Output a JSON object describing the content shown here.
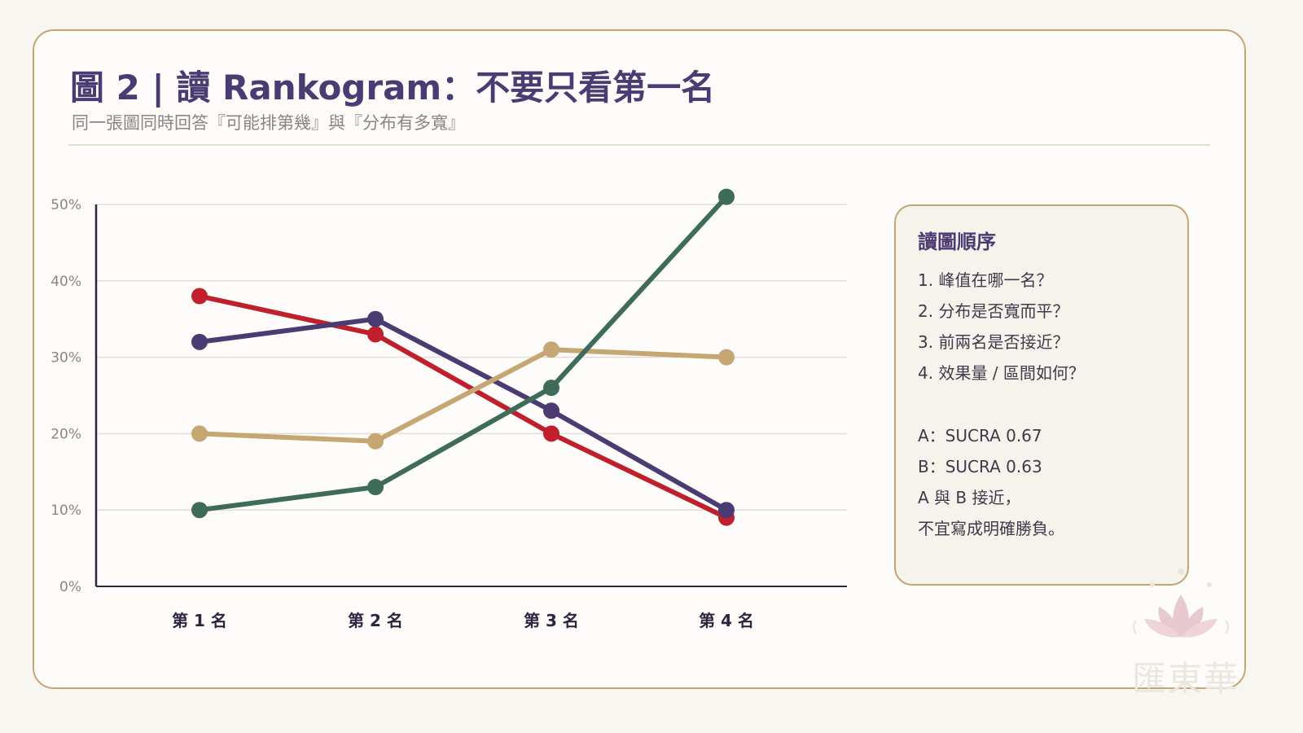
{
  "header": {
    "title": "圖 2 | 讀 Rankogram：不要只看第一名",
    "subtitle": "同一張圖同時回答『可能排第幾』與『分布有多寬』"
  },
  "chart_data": {
    "type": "line",
    "categories": [
      "第 1 名",
      "第 2 名",
      "第 3 名",
      "第 4 名"
    ],
    "y_ticks": [
      "0%",
      "10%",
      "20%",
      "30%",
      "40%",
      "50%"
    ],
    "ylim": [
      0,
      50
    ],
    "grid": true,
    "series": [
      {
        "color": "#c0202c",
        "values": [
          38,
          33,
          20,
          9
        ]
      },
      {
        "color": "#4a3b72",
        "values": [
          32,
          35,
          23,
          10
        ]
      },
      {
        "color": "#c6a672",
        "values": [
          20,
          19,
          31,
          30
        ]
      },
      {
        "color": "#3e6b5a",
        "values": [
          10,
          13,
          26,
          51
        ]
      }
    ]
  },
  "panel": {
    "title": "讀圖順序",
    "lines": [
      "1. 峰值在哪一名？",
      "2. 分布是否寬而平？",
      "3. 前兩名是否接近？",
      "4. 效果量 / 區間如何？",
      "A：SUCRA 0.67",
      "B：SUCRA 0.63",
      "A 與 B 接近，",
      "不宜寫成明確勝負。"
    ]
  },
  "watermark": {
    "text": "匯東華",
    "icon": "lotus-icon"
  },
  "colors": {
    "accent": "#4a3b72",
    "border": "#c4a572",
    "background": "#f8f6f1"
  }
}
